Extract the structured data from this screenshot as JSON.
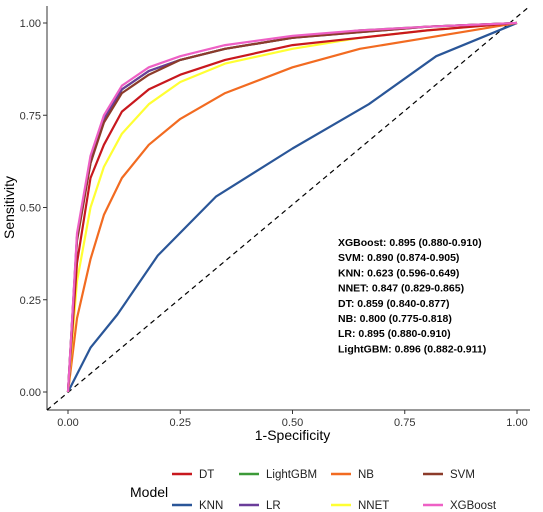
{
  "chart_data": {
    "type": "line",
    "title": "",
    "xlabel": "1-Specificity",
    "ylabel": "Sensitivity",
    "xlim": [
      0,
      1
    ],
    "ylim": [
      0,
      1
    ],
    "x_ticks": [
      "0.00",
      "0.25",
      "0.50",
      "0.75",
      "1.00"
    ],
    "y_ticks": [
      "0.00",
      "0.25",
      "0.50",
      "0.75",
      "1.00"
    ],
    "grid": false,
    "diagonal_reference": true,
    "legend": {
      "title": "Model",
      "placement": "bottom",
      "entries": [
        {
          "name": "DT",
          "color": "#C8181E"
        },
        {
          "name": "LightGBM",
          "color": "#3C9A38"
        },
        {
          "name": "NB",
          "color": "#F26B21"
        },
        {
          "name": "SVM",
          "color": "#8C3B2A"
        },
        {
          "name": "KNN",
          "color": "#2A5698"
        },
        {
          "name": "LR",
          "color": "#6A3D9A"
        },
        {
          "name": "NNET",
          "color": "#FFFF33"
        },
        {
          "name": "XGBoost",
          "color": "#EE60C5"
        }
      ]
    },
    "annotations": [
      "XGBoost: 0.895 (0.880-0.910)",
      "SVM: 0.890 (0.874-0.905)",
      "KNN: 0.623 (0.596-0.649)",
      "NNET: 0.847 (0.829-0.865)",
      "DT: 0.859 (0.840-0.877)",
      "NB: 0.800 (0.775-0.818)",
      "LR: 0.895 (0.880-0.910)",
      "LightGBM: 0.896 (0.882-0.911)"
    ],
    "series": [
      {
        "name": "KNN",
        "color": "#2A5698",
        "x": [
          0,
          0.05,
          0.11,
          0.2,
          0.33,
          0.5,
          0.67,
          0.82,
          0.98,
          1.0
        ],
        "y": [
          0,
          0.12,
          0.21,
          0.37,
          0.53,
          0.66,
          0.78,
          0.91,
          0.99,
          1.0
        ]
      },
      {
        "name": "NB",
        "color": "#F26B21",
        "x": [
          0,
          0.02,
          0.05,
          0.08,
          0.12,
          0.18,
          0.25,
          0.35,
          0.5,
          0.65,
          0.8,
          0.9,
          1.0
        ],
        "y": [
          0,
          0.2,
          0.36,
          0.48,
          0.58,
          0.67,
          0.74,
          0.81,
          0.88,
          0.93,
          0.96,
          0.98,
          1.0
        ]
      },
      {
        "name": "NNET",
        "color": "#FFFF33",
        "x": [
          0,
          0.02,
          0.05,
          0.08,
          0.12,
          0.18,
          0.25,
          0.35,
          0.5,
          0.65,
          0.8,
          1.0
        ],
        "y": [
          0,
          0.3,
          0.5,
          0.61,
          0.7,
          0.78,
          0.84,
          0.89,
          0.93,
          0.96,
          0.98,
          1.0
        ]
      },
      {
        "name": "DT",
        "color": "#C8181E",
        "x": [
          0,
          0.02,
          0.05,
          0.08,
          0.12,
          0.18,
          0.25,
          0.35,
          0.5,
          0.65,
          0.8,
          1.0
        ],
        "y": [
          0,
          0.35,
          0.58,
          0.67,
          0.76,
          0.82,
          0.86,
          0.9,
          0.94,
          0.96,
          0.98,
          1.0
        ]
      },
      {
        "name": "LightGBM",
        "color": "#3C9A38",
        "x": [
          0,
          0.02,
          0.05,
          0.08,
          0.12,
          0.18,
          0.25,
          0.35,
          0.5,
          0.65,
          0.8,
          1.0
        ],
        "y": [
          0,
          0.42,
          0.63,
          0.74,
          0.82,
          0.87,
          0.9,
          0.93,
          0.96,
          0.98,
          0.99,
          1.0
        ]
      },
      {
        "name": "LR",
        "color": "#6A3D9A",
        "x": [
          0,
          0.02,
          0.05,
          0.08,
          0.12,
          0.18,
          0.25,
          0.35,
          0.5,
          0.65,
          0.8,
          1.0
        ],
        "y": [
          0,
          0.42,
          0.62,
          0.74,
          0.82,
          0.87,
          0.9,
          0.93,
          0.96,
          0.975,
          0.99,
          1.0
        ]
      },
      {
        "name": "SVM",
        "color": "#8C3B2A",
        "x": [
          0,
          0.02,
          0.05,
          0.08,
          0.12,
          0.18,
          0.25,
          0.35,
          0.5,
          0.65,
          0.8,
          1.0
        ],
        "y": [
          0,
          0.41,
          0.62,
          0.73,
          0.81,
          0.86,
          0.9,
          0.93,
          0.96,
          0.975,
          0.99,
          1.0
        ]
      },
      {
        "name": "XGBoost",
        "color": "#EE60C5",
        "x": [
          0,
          0.02,
          0.05,
          0.08,
          0.12,
          0.18,
          0.25,
          0.35,
          0.5,
          0.65,
          0.8,
          1.0
        ],
        "y": [
          0,
          0.43,
          0.64,
          0.75,
          0.83,
          0.88,
          0.91,
          0.94,
          0.965,
          0.98,
          0.99,
          1.0
        ]
      }
    ]
  }
}
